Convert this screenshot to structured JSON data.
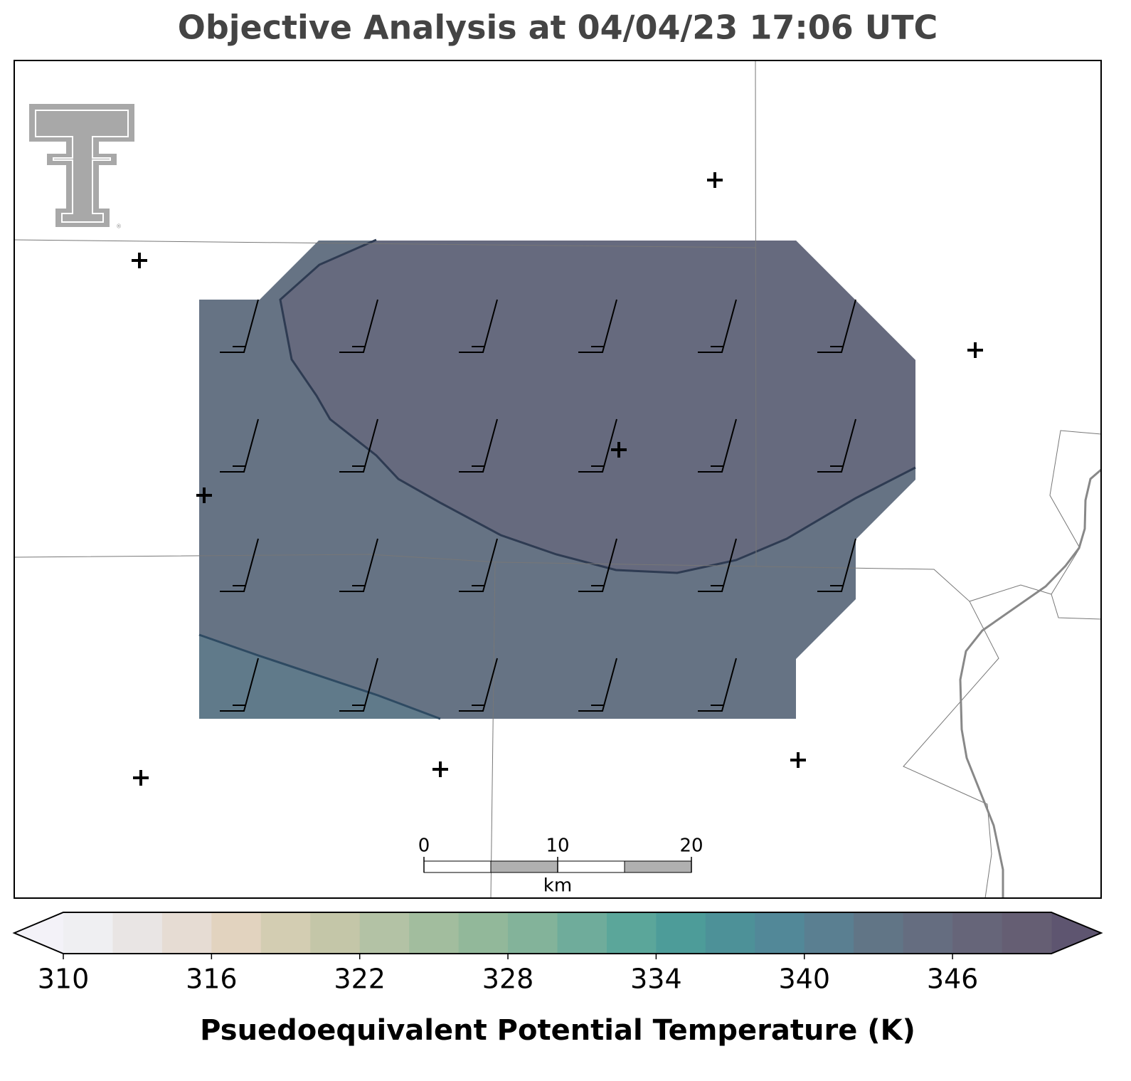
{
  "title": "Objective Analysis at 04/04/23 17:06 UTC",
  "colorbar": {
    "label": "Psuedoequivalent Potential Temperature (K)",
    "range": [
      310,
      350
    ],
    "ticks": [
      310,
      316,
      322,
      328,
      334,
      340,
      346
    ],
    "colors": [
      "#efeff2",
      "#e9e5e4",
      "#e6dcd3",
      "#e2d3bf",
      "#d3cdb2",
      "#c4c6a8",
      "#b3c2a5",
      "#a2bd9e",
      "#92b89a",
      "#83b39a",
      "#6fac9b",
      "#5ba69a",
      "#4d9c99",
      "#4d9198",
      "#528898",
      "#5a7f91",
      "#617586",
      "#656d80",
      "#666579",
      "#655e73"
    ],
    "under_color": "#f3f2f8",
    "over_color": "#5e5570"
  },
  "scale_bar": {
    "range": [
      0,
      20
    ],
    "ticks": [
      0,
      10,
      20
    ],
    "unit": "km"
  }
}
